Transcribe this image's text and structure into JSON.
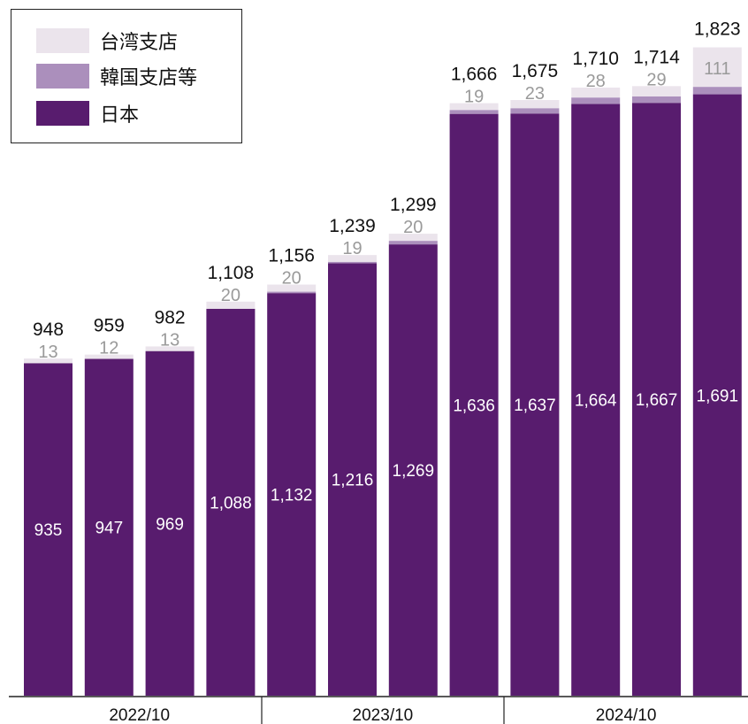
{
  "legend": {
    "items": [
      {
        "label": "台湾支店",
        "color": "#ebe4ec"
      },
      {
        "label": "韓国支店等",
        "color": "#ab8fbc"
      },
      {
        "label": "日本",
        "color": "#581c6e"
      }
    ]
  },
  "colors": {
    "taiwan": "#ebe4ec",
    "korea": "#ab8fbc",
    "japan": "#581c6e",
    "taiwan_label": "#9a9a9a",
    "japan_label": "#ffffff",
    "total_label": "#111111"
  },
  "chart_data": {
    "type": "bar",
    "stacked": true,
    "x": [
      "2022/10",
      "",
      "",
      "",
      "2023/10",
      "",
      "",
      "",
      "2024/10",
      "",
      "",
      ""
    ],
    "group_labels": [
      "2022/10",
      "2023/10",
      "2024/10"
    ],
    "ylim": [
      0,
      1900
    ],
    "series": [
      {
        "name": "日本",
        "values": [
          935,
          947,
          969,
          1088,
          1132,
          1216,
          1269,
          1636,
          1637,
          1664,
          1667,
          1691
        ]
      },
      {
        "name": "韓国支店等",
        "values": [
          0,
          0,
          0,
          0,
          4,
          4,
          10,
          11,
          15,
          18,
          18,
          21
        ]
      },
      {
        "name": "台湾支店",
        "values": [
          13,
          12,
          13,
          20,
          20,
          19,
          20,
          19,
          23,
          28,
          29,
          111
        ]
      }
    ],
    "totals": [
      948,
      959,
      982,
      1108,
      1156,
      1239,
      1299,
      1666,
      1675,
      1710,
      1714,
      1823
    ],
    "data_labels": {
      "japan": [
        "935",
        "947",
        "969",
        "1,088",
        "1,132",
        "1,216",
        "1,269",
        "1,636",
        "1,637",
        "1,664",
        "1,667",
        "1,691"
      ],
      "taiwan": [
        "13",
        "12",
        "13",
        "20",
        "20",
        "19",
        "20",
        "19",
        "23",
        "28",
        "29",
        "111"
      ],
      "totals": [
        "948",
        "959",
        "982",
        "1,108",
        "1,156",
        "1,239",
        "1,299",
        "1,666",
        "1,675",
        "1,710",
        "1,714",
        "1,823"
      ]
    },
    "legend_position": "top-left",
    "grid": false
  }
}
